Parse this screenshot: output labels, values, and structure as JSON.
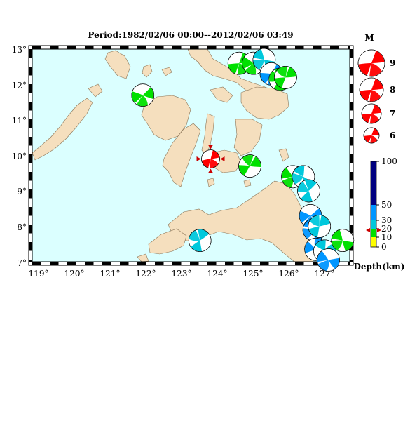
{
  "title": "Period:1982/02/06 00:00--2012/02/06 03:49",
  "colors": {
    "ocean": "#dbffff",
    "land": "#f5dfbe",
    "coast": "#8a7355",
    "main_event": "#ff0000",
    "shallow": "#00e000",
    "mid": "#00c8dc",
    "deep": "#0096ff"
  },
  "map": {
    "lon_labels": [
      "119°",
      "120°",
      "121°",
      "122°",
      "123°",
      "124°",
      "125°",
      "126°",
      "127°"
    ],
    "lat_labels": [
      "13°",
      "12°",
      "11°",
      "10°",
      "9°",
      "8°",
      "7°"
    ]
  },
  "magnitude_legend": {
    "title": "M",
    "labels": [
      "9",
      "8",
      "7",
      "6"
    ]
  },
  "depth_legend": {
    "title": "Depth(km)",
    "labels": [
      "100",
      "50",
      "30",
      "20",
      "10",
      "0"
    ],
    "band_colors": [
      "#00007f",
      "#0030d0",
      "#0096ff",
      "#00c8dc",
      "#00e000",
      "#ffff00"
    ]
  },
  "events": [
    {
      "lon": 123.8,
      "lat": 9.9,
      "color": "main_event",
      "rot": 15,
      "main": true
    },
    {
      "lon": 121.9,
      "lat": 11.7,
      "color": "shallow",
      "rot": 45
    },
    {
      "lon": 124.6,
      "lat": 12.6,
      "color": "shallow",
      "rot": 20
    },
    {
      "lon": 125.0,
      "lat": 12.6,
      "color": "shallow",
      "rot": 60
    },
    {
      "lon": 125.3,
      "lat": 12.7,
      "color": "mid",
      "rot": 100
    },
    {
      "lon": 125.5,
      "lat": 12.3,
      "color": "deep",
      "rot": 30
    },
    {
      "lon": 125.75,
      "lat": 12.15,
      "color": "shallow",
      "rot": 150
    },
    {
      "lon": 125.9,
      "lat": 12.2,
      "color": "shallow",
      "rot": 200
    },
    {
      "lon": 124.9,
      "lat": 9.7,
      "color": "shallow",
      "rot": 210
    },
    {
      "lon": 126.1,
      "lat": 9.4,
      "color": "shallow",
      "rot": 80
    },
    {
      "lon": 126.4,
      "lat": 9.4,
      "color": "mid",
      "rot": 120
    },
    {
      "lon": 126.55,
      "lat": 9.0,
      "color": "mid",
      "rot": 160
    },
    {
      "lon": 126.6,
      "lat": 8.3,
      "color": "deep",
      "rot": 50
    },
    {
      "lon": 126.7,
      "lat": 7.9,
      "color": "deep",
      "rot": 110
    },
    {
      "lon": 126.85,
      "lat": 8.0,
      "color": "mid",
      "rot": 190
    },
    {
      "lon": 126.75,
      "lat": 7.35,
      "color": "deep",
      "rot": 250
    },
    {
      "lon": 127.0,
      "lat": 7.3,
      "color": "mid",
      "rot": 300
    },
    {
      "lon": 127.1,
      "lat": 7.05,
      "color": "deep",
      "rot": 80
    },
    {
      "lon": 127.5,
      "lat": 7.6,
      "color": "shallow",
      "rot": 100
    },
    {
      "lon": 123.5,
      "lat": 7.6,
      "color": "mid",
      "rot": 170
    }
  ]
}
